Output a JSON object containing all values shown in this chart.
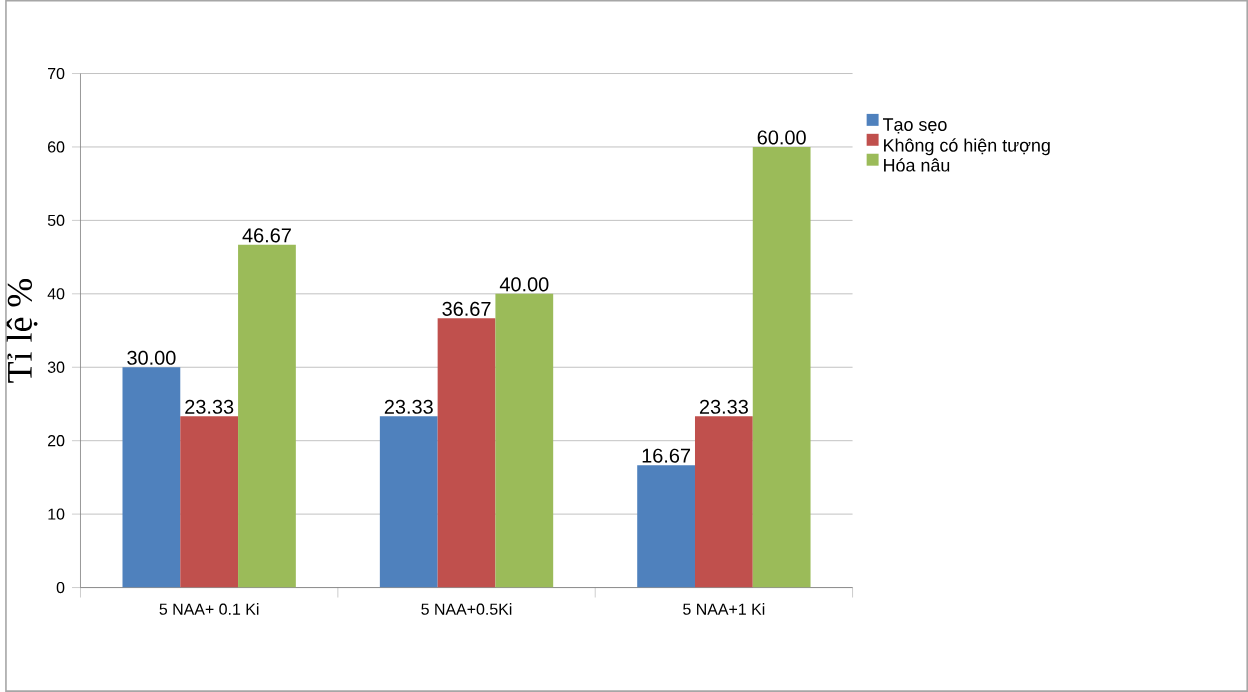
{
  "chart_data": {
    "type": "bar",
    "ylabel": "Tỉ lệ %",
    "categories": [
      "5 NAA+ 0.1 Ki",
      "5 NAA+0.5Ki",
      "5 NAA+1 Ki"
    ],
    "series": [
      {
        "name": "Tạo sẹo",
        "color": "#4f81bd",
        "values": [
          30.0,
          23.33,
          16.67
        ],
        "value_labels": [
          "30.00",
          "23.33",
          "16.67"
        ]
      },
      {
        "name": "Không có hiện tượng",
        "color": "#c0504d",
        "values": [
          23.33,
          36.67,
          23.33
        ],
        "value_labels": [
          "23.33",
          "36.67",
          "23.33"
        ]
      },
      {
        "name": "Hóa nâu",
        "color": "#9bbb59",
        "values": [
          46.67,
          40.0,
          60.0
        ],
        "value_labels": [
          "46.67",
          "40.00",
          "60.00"
        ]
      }
    ],
    "ylim": [
      0,
      70
    ],
    "yticks": [
      0,
      10,
      20,
      30,
      40,
      50,
      60,
      70
    ],
    "grid": "y",
    "legend": "right"
  }
}
